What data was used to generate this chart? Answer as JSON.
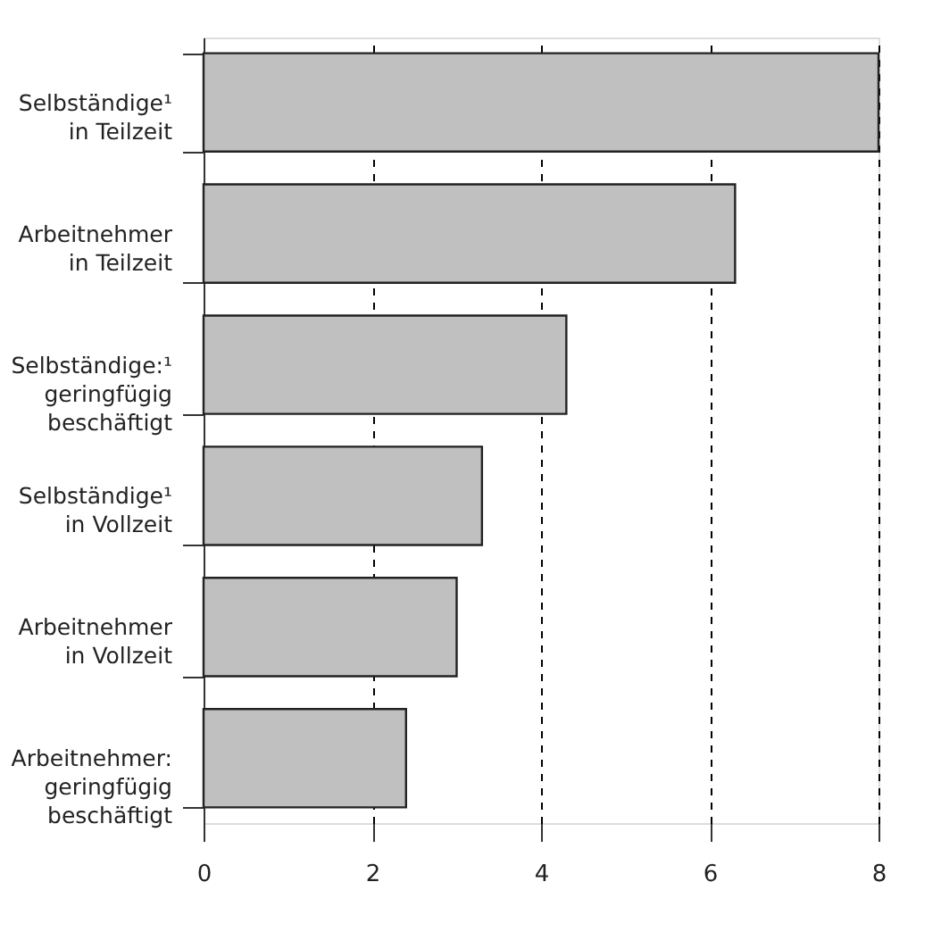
{
  "chart_data": {
    "type": "bar",
    "orientation": "horizontal",
    "categories": [
      "Selbständige¹\nin Teilzeit",
      "Arbeitnehmer\nin Teilzeit",
      "Selbständige:¹\ngeringfügig\nbeschäftigt",
      "Selbständige¹\nin Vollzeit",
      "Arbeitnehmer\nin Vollzeit",
      "Arbeitnehmer:\ngeringfügig\nbeschäftigt"
    ],
    "values": [
      8.0,
      6.3,
      4.3,
      3.3,
      3.0,
      2.4
    ],
    "color": "#c0c0c0",
    "xlim": [
      0,
      8
    ],
    "xticks": [
      0,
      2,
      4,
      6,
      8
    ],
    "grid": "x",
    "legend": false
  }
}
